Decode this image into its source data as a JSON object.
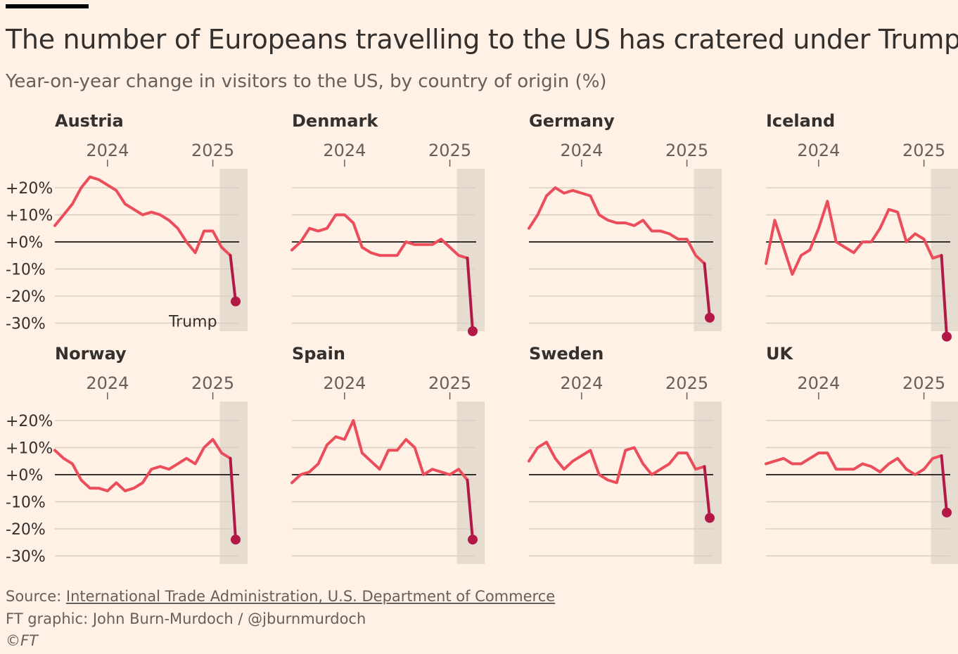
{
  "title": "The number of Europeans travelling to the US has cratered under Trump",
  "subtitle": "Year-on-year change in visitors to the US, by country of origin (%)",
  "footer": {
    "source_prefix": "Source: ",
    "source_link": "International Trade Administration, U.S. Department of Commerce",
    "credit": "FT graphic: John Burn-Murdoch / @jburnmurdoch",
    "copyright": "©FT"
  },
  "colors": {
    "line": "#ec4d5b",
    "final": "#b21947",
    "shade": "#e7dcd0",
    "grid": "#d9cfc4",
    "zero": "#33302e"
  },
  "chart_data": {
    "type": "line",
    "x_ticks": [
      "2024",
      "2025"
    ],
    "y_ticks": [
      20,
      10,
      0,
      -10,
      -20,
      -30
    ],
    "y_tick_labels": [
      "+20%",
      "+10%",
      "+0%",
      "-10%",
      "-20%",
      "-30%"
    ],
    "ylim": [
      -33,
      27
    ],
    "highlight_label": "Trump",
    "months": [
      "2023-07",
      "2023-08",
      "2023-09",
      "2023-10",
      "2023-11",
      "2023-12",
      "2024-01",
      "2024-02",
      "2024-03",
      "2024-04",
      "2024-05",
      "2024-06",
      "2024-07",
      "2024-08",
      "2024-09",
      "2024-10",
      "2024-11",
      "2024-12",
      "2025-01",
      "2025-02",
      "2025-03"
    ],
    "panels": [
      {
        "country": "Austria",
        "values": [
          6,
          10,
          14,
          20,
          24,
          23,
          21,
          19,
          14,
          12,
          10,
          11,
          10,
          8,
          5,
          0,
          -4,
          4,
          4,
          -2,
          -5
        ],
        "final": -22
      },
      {
        "country": "Denmark",
        "values": [
          -3,
          0,
          5,
          4,
          5,
          10,
          10,
          7,
          -2,
          -4,
          -5,
          -5,
          -5,
          0,
          -1,
          -1,
          -1,
          1,
          -2,
          -5,
          -6
        ],
        "final": -33
      },
      {
        "country": "Germany",
        "values": [
          5,
          10,
          17,
          20,
          18,
          19,
          18,
          17,
          10,
          8,
          7,
          7,
          6,
          8,
          4,
          4,
          3,
          1,
          1,
          -5,
          -8
        ],
        "final": -28
      },
      {
        "country": "Iceland",
        "values": [
          -8,
          8,
          -2,
          -12,
          -5,
          -3,
          5,
          15,
          0,
          -2,
          -4,
          0,
          0,
          5,
          12,
          11,
          0,
          3,
          1,
          -6,
          -5
        ],
        "final": -35
      },
      {
        "country": "Norway",
        "values": [
          9,
          6,
          4,
          -2,
          -5,
          -5,
          -6,
          -3,
          -6,
          -5,
          -3,
          2,
          3,
          2,
          4,
          6,
          4,
          10,
          13,
          8,
          6
        ],
        "final": -24
      },
      {
        "country": "Spain",
        "values": [
          -3,
          0,
          1,
          4,
          11,
          14,
          13,
          20,
          8,
          5,
          2,
          9,
          9,
          13,
          10,
          0,
          2,
          1,
          0,
          2,
          -2
        ],
        "final": -24
      },
      {
        "country": "Sweden",
        "values": [
          5,
          10,
          12,
          6,
          2,
          5,
          7,
          9,
          0,
          -2,
          -3,
          9,
          10,
          4,
          0,
          2,
          4,
          8,
          8,
          2,
          3
        ],
        "final": -16
      },
      {
        "country": "UK",
        "values": [
          4,
          5,
          6,
          4,
          4,
          6,
          8,
          8,
          2,
          2,
          2,
          4,
          3,
          1,
          4,
          6,
          2,
          0,
          2,
          6,
          7
        ],
        "final": -14
      }
    ]
  }
}
